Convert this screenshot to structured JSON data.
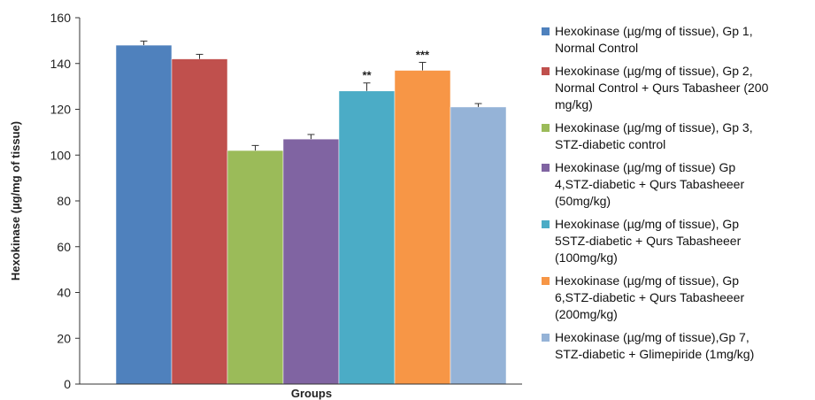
{
  "chart_data": {
    "type": "bar",
    "xlabel": "Groups",
    "ylabel": "Hexokinase (µg/mg of tissue)",
    "ylim": [
      0,
      160
    ],
    "yticks": [
      0,
      20,
      40,
      60,
      80,
      100,
      120,
      140,
      160
    ],
    "grid": false,
    "legend_position": "right",
    "series": [
      {
        "name": "Hexokinase (µg/mg of tissue), Gp 1,\nNormal Control",
        "value": 148,
        "error": 1.8,
        "color": "#4f81bd",
        "annotation": ""
      },
      {
        "name": "Hexokinase (µg/mg of tissue), Gp 2,\nNormal Control + Qurs Tabasheer (200\nmg/kg)",
        "value": 142,
        "error": 2.0,
        "color": "#c0504d",
        "annotation": ""
      },
      {
        "name": "Hexokinase (µg/mg of tissue), Gp 3,\nSTZ-diabetic control",
        "value": 102,
        "error": 2.2,
        "color": "#9bbb59",
        "annotation": ""
      },
      {
        "name": "Hexokinase (µg/mg of tissue) Gp\n4,STZ-diabetic + Qurs Tabasheeer\n(50mg/kg)",
        "value": 107,
        "error": 2.0,
        "color": "#8064a2",
        "annotation": ""
      },
      {
        "name": "Hexokinase (µg/mg of tissue), Gp\n5STZ-diabetic + Qurs Tabasheeer\n(100mg/kg)",
        "value": 128,
        "error": 3.5,
        "color": "#4bacc6",
        "annotation": "**"
      },
      {
        "name": "Hexokinase (µg/mg of tissue), Gp\n6,STZ-diabetic + Qurs Tabasheeer\n(200mg/kg)",
        "value": 137,
        "error": 3.5,
        "color": "#f79646",
        "annotation": "***"
      },
      {
        "name": "Hexokinase (µg/mg of tissue),Gp 7,\nSTZ-diabetic + Glimepiride (1mg/kg)",
        "value": 121,
        "error": 1.5,
        "color": "#95b3d7",
        "annotation": ""
      }
    ]
  }
}
